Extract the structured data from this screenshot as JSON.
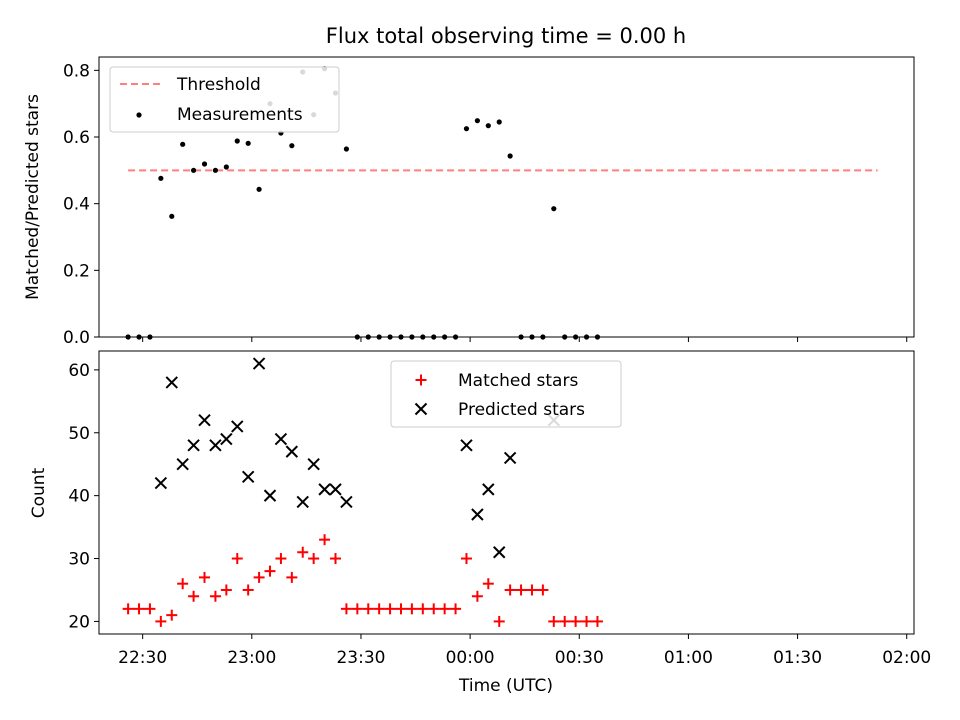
{
  "title": "Flux total observing time = 0.00 h",
  "chart_data": [
    {
      "type": "scatter",
      "ylabel": "Matched/Predicted stars",
      "xlim": [
        "22:18",
        "02:02"
      ],
      "ylim": [
        0,
        0.84
      ],
      "yticks": [
        "0.0",
        "0.2",
        "0.4",
        "0.6",
        "0.8"
      ],
      "legend_position": "upper-left",
      "threshold": {
        "name": "Threshold",
        "value": 0.5,
        "x_range": [
          "22:26",
          "01:52"
        ],
        "color": "#ff7f7f",
        "style": "dashed"
      },
      "series": [
        {
          "name": "Measurements",
          "color": "#000000",
          "marker": "dot",
          "points": [
            [
              "22:26",
              0.0
            ],
            [
              "22:29",
              0.0
            ],
            [
              "22:32",
              0.0
            ],
            [
              "22:35",
              0.476
            ],
            [
              "22:38",
              0.362
            ],
            [
              "22:41",
              0.578
            ],
            [
              "22:44",
              0.5
            ],
            [
              "22:47",
              0.519
            ],
            [
              "22:50",
              0.5
            ],
            [
              "22:53",
              0.51
            ],
            [
              "22:56",
              0.588
            ],
            [
              "22:59",
              0.581
            ],
            [
              "23:02",
              0.443
            ],
            [
              "23:05",
              0.7
            ],
            [
              "23:08",
              0.612
            ],
            [
              "23:11",
              0.574
            ],
            [
              "23:14",
              0.795
            ],
            [
              "23:17",
              0.667
            ],
            [
              "23:20",
              0.805
            ],
            [
              "23:23",
              0.732
            ],
            [
              "23:26",
              0.564
            ],
            [
              "23:29",
              0.0
            ],
            [
              "23:32",
              0.0
            ],
            [
              "23:35",
              0.0
            ],
            [
              "23:38",
              0.0
            ],
            [
              "23:41",
              0.0
            ],
            [
              "23:44",
              0.0
            ],
            [
              "23:47",
              0.0
            ],
            [
              "23:50",
              0.0
            ],
            [
              "23:53",
              0.0
            ],
            [
              "23:56",
              0.0
            ],
            [
              "23:59",
              0.625
            ],
            [
              "00:02",
              0.649
            ],
            [
              "00:05",
              0.634
            ],
            [
              "00:08",
              0.645
            ],
            [
              "00:11",
              0.543
            ],
            [
              "00:14",
              0.0
            ],
            [
              "00:17",
              0.0
            ],
            [
              "00:20",
              0.0
            ],
            [
              "00:23",
              0.385
            ],
            [
              "00:26",
              0.0
            ],
            [
              "00:29",
              0.0
            ],
            [
              "00:32",
              0.0
            ],
            [
              "00:35",
              0.0
            ]
          ]
        }
      ]
    },
    {
      "type": "scatter",
      "xlabel": "Time (UTC)",
      "ylabel": "Count",
      "xlim": [
        "22:18",
        "02:02"
      ],
      "ylim": [
        18,
        63
      ],
      "xticks": [
        "22:30",
        "23:00",
        "23:30",
        "00:00",
        "00:30",
        "01:00",
        "01:30",
        "02:00"
      ],
      "yticks": [
        "20",
        "30",
        "40",
        "50",
        "60"
      ],
      "legend_position": "upper-center",
      "series": [
        {
          "name": "Matched stars",
          "color": "#ff0000",
          "marker": "plus",
          "points": [
            [
              "22:26",
              22
            ],
            [
              "22:29",
              22
            ],
            [
              "22:32",
              22
            ],
            [
              "22:35",
              20
            ],
            [
              "22:38",
              21
            ],
            [
              "22:41",
              26
            ],
            [
              "22:44",
              24
            ],
            [
              "22:47",
              27
            ],
            [
              "22:50",
              24
            ],
            [
              "22:53",
              25
            ],
            [
              "22:56",
              30
            ],
            [
              "22:59",
              25
            ],
            [
              "23:02",
              27
            ],
            [
              "23:05",
              28
            ],
            [
              "23:08",
              30
            ],
            [
              "23:11",
              27
            ],
            [
              "23:14",
              31
            ],
            [
              "23:17",
              30
            ],
            [
              "23:20",
              33
            ],
            [
              "23:23",
              30
            ],
            [
              "23:26",
              22
            ],
            [
              "23:29",
              22
            ],
            [
              "23:32",
              22
            ],
            [
              "23:35",
              22
            ],
            [
              "23:38",
              22
            ],
            [
              "23:41",
              22
            ],
            [
              "23:44",
              22
            ],
            [
              "23:47",
              22
            ],
            [
              "23:50",
              22
            ],
            [
              "23:53",
              22
            ],
            [
              "23:56",
              22
            ],
            [
              "23:59",
              30
            ],
            [
              "00:02",
              24
            ],
            [
              "00:05",
              26
            ],
            [
              "00:08",
              20
            ],
            [
              "00:11",
              25
            ],
            [
              "00:14",
              25
            ],
            [
              "00:17",
              25
            ],
            [
              "00:20",
              25
            ],
            [
              "00:23",
              20
            ],
            [
              "00:26",
              20
            ],
            [
              "00:29",
              20
            ],
            [
              "00:32",
              20
            ],
            [
              "00:35",
              20
            ]
          ]
        },
        {
          "name": "Predicted stars",
          "color": "#000000",
          "marker": "x",
          "points": [
            [
              "22:35",
              42
            ],
            [
              "22:38",
              58
            ],
            [
              "22:41",
              45
            ],
            [
              "22:44",
              48
            ],
            [
              "22:47",
              52
            ],
            [
              "22:50",
              48
            ],
            [
              "22:53",
              49
            ],
            [
              "22:56",
              51
            ],
            [
              "22:59",
              43
            ],
            [
              "23:02",
              61
            ],
            [
              "23:05",
              40
            ],
            [
              "23:08",
              49
            ],
            [
              "23:11",
              47
            ],
            [
              "23:14",
              39
            ],
            [
              "23:17",
              45
            ],
            [
              "23:20",
              41
            ],
            [
              "23:23",
              41
            ],
            [
              "23:26",
              39
            ],
            [
              "23:59",
              48
            ],
            [
              "00:02",
              37
            ],
            [
              "00:05",
              41
            ],
            [
              "00:08",
              31
            ],
            [
              "00:11",
              46
            ],
            [
              "00:23",
              52
            ]
          ]
        }
      ]
    }
  ]
}
